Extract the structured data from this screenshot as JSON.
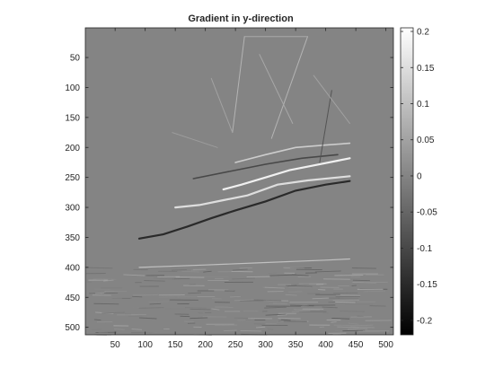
{
  "chart_data": {
    "type": "heatmap",
    "title": "Gradient in y-direction",
    "xlabel": "",
    "ylabel": "",
    "xlim": [
      0.5,
      512.5
    ],
    "ylim": [
      0.5,
      512.5
    ],
    "y_direction": "reversed",
    "x_ticks": [
      50,
      100,
      150,
      200,
      250,
      300,
      350,
      400,
      450,
      500
    ],
    "y_ticks": [
      50,
      100,
      150,
      200,
      250,
      300,
      350,
      400,
      450,
      500
    ],
    "colormap": "gray",
    "colorbar": {
      "clim": [
        -0.22,
        0.205
      ],
      "ticks": [
        0.2,
        0.15,
        0.1,
        0.05,
        0,
        -0.05,
        -0.1,
        -0.15,
        -0.2
      ],
      "tick_labels": [
        "0.2",
        "0.15",
        "0.1",
        "0.05",
        "0",
        "-0.05",
        "-0.1",
        "-0.15",
        "-0.2"
      ]
    },
    "background_value": 0.0,
    "image_description_features": [
      {
        "kind": "hull-edge",
        "points": [
          [
            230,
            270
          ],
          [
            260,
            262
          ],
          [
            300,
            250
          ],
          [
            340,
            238
          ],
          [
            380,
            230
          ],
          [
            420,
            222
          ],
          [
            440,
            218
          ]
        ],
        "value": 0.18
      },
      {
        "kind": "hull-edge",
        "points": [
          [
            90,
            352
          ],
          [
            130,
            345
          ],
          [
            170,
            332
          ],
          [
            210,
            318
          ],
          [
            250,
            305
          ],
          [
            300,
            290
          ],
          [
            350,
            272
          ],
          [
            400,
            262
          ],
          [
            440,
            256
          ]
        ],
        "value": -0.15
      },
      {
        "kind": "hull-edge",
        "points": [
          [
            150,
            300
          ],
          [
            190,
            296
          ],
          [
            230,
            288
          ],
          [
            270,
            280
          ],
          [
            320,
            262
          ],
          [
            370,
            255
          ],
          [
            420,
            250
          ],
          [
            440,
            248
          ]
        ],
        "value": 0.15
      },
      {
        "kind": "deck-edge",
        "points": [
          [
            250,
            225
          ],
          [
            300,
            212
          ],
          [
            350,
            200
          ],
          [
            400,
            196
          ],
          [
            440,
            193
          ]
        ],
        "value": 0.12
      },
      {
        "kind": "deck-edge",
        "points": [
          [
            180,
            252
          ],
          [
            240,
            240
          ],
          [
            300,
            228
          ],
          [
            360,
            218
          ],
          [
            420,
            212
          ]
        ],
        "value": -0.1
      },
      {
        "kind": "waterline",
        "points": [
          [
            90,
            400
          ],
          [
            200,
            396
          ],
          [
            300,
            392
          ],
          [
            400,
            388
          ],
          [
            440,
            386
          ]
        ],
        "value": 0.1
      },
      {
        "kind": "mast",
        "points": [
          [
            265,
            15
          ],
          [
            245,
            175
          ]
        ],
        "value": 0.08
      },
      {
        "kind": "mast",
        "points": [
          [
            370,
            15
          ],
          [
            310,
            185
          ]
        ],
        "value": 0.08
      },
      {
        "kind": "mast",
        "points": [
          [
            410,
            105
          ],
          [
            390,
            225
          ]
        ],
        "value": -0.08
      },
      {
        "kind": "rigging",
        "points": [
          [
            265,
            15
          ],
          [
            370,
            15
          ]
        ],
        "value": 0.06
      },
      {
        "kind": "rigging",
        "points": [
          [
            290,
            45
          ],
          [
            345,
            160
          ]
        ],
        "value": 0.06
      },
      {
        "kind": "rigging",
        "points": [
          [
            380,
            80
          ],
          [
            440,
            160
          ]
        ],
        "value": 0.05
      },
      {
        "kind": "rigging",
        "points": [
          [
            210,
            85
          ],
          [
            245,
            175
          ]
        ],
        "value": 0.05
      },
      {
        "kind": "rigging",
        "points": [
          [
            145,
            175
          ],
          [
            220,
            200
          ]
        ],
        "value": 0.04
      }
    ]
  }
}
